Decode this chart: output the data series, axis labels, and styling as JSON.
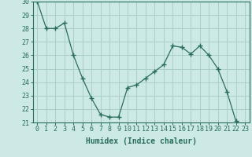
{
  "x": [
    0,
    1,
    2,
    3,
    4,
    5,
    6,
    7,
    8,
    9,
    10,
    11,
    12,
    13,
    14,
    15,
    16,
    17,
    18,
    19,
    20,
    21,
    22,
    23
  ],
  "y": [
    30.0,
    28.0,
    28.0,
    28.4,
    26.0,
    24.3,
    22.8,
    21.6,
    21.4,
    21.4,
    23.6,
    23.8,
    24.3,
    24.8,
    25.3,
    26.7,
    26.6,
    26.1,
    26.7,
    26.0,
    25.0,
    23.3,
    21.1,
    20.7
  ],
  "xlabel": "Humidex (Indice chaleur)",
  "ylim": [
    21,
    30
  ],
  "xlim": [
    -0.5,
    23.5
  ],
  "bg_color": "#cce9e5",
  "grid_color": "#aacfca",
  "line_color": "#2a6b60",
  "tick_fontsize": 6,
  "label_fontsize": 7
}
